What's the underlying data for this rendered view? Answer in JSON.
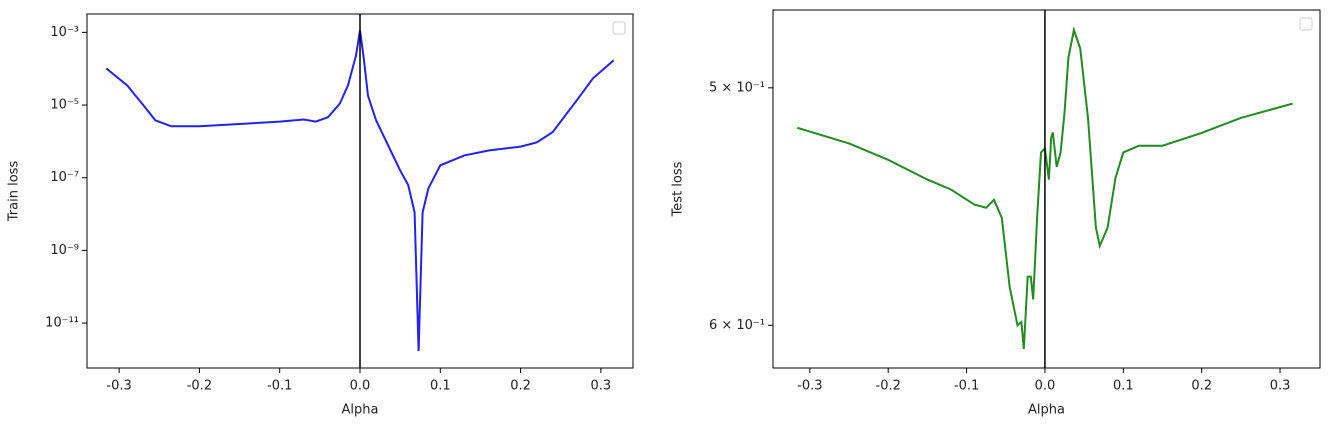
{
  "chart_data": [
    {
      "type": "line",
      "xlabel": "Alpha",
      "ylabel": "Train loss",
      "log_y": true,
      "legend": "upper right",
      "vline": 0,
      "vline_color": "#000000",
      "xlim": [
        -0.34,
        0.34
      ],
      "xticks": [
        -0.3,
        -0.2,
        -0.1,
        {
          "value": 0,
          "label": "0.0"
        },
        0.1,
        0.2,
        0.3
      ],
      "ylim": [
        0.0032,
        5.8e-13
      ],
      "yticks": [
        {
          "value": 0.001,
          "label": "10⁻³"
        },
        {
          "value": 1e-05,
          "label": "10⁻⁵"
        },
        {
          "value": 1e-07,
          "label": "10⁻⁷"
        },
        {
          "value": 1e-09,
          "label": "10⁻⁹"
        },
        {
          "value": 1e-11,
          "label": "10⁻¹¹"
        }
      ],
      "series": [
        {
          "color": "#2222ee",
          "x": [
            -0.316,
            -0.29,
            -0.27,
            -0.255,
            -0.235,
            -0.2,
            -0.15,
            -0.1,
            -0.07,
            -0.055,
            -0.04,
            -0.025,
            -0.015,
            -0.005,
            0.0,
            0.005,
            0.01,
            0.02,
            0.035,
            0.05,
            0.06,
            0.068,
            0.073,
            0.078,
            0.085,
            0.1,
            0.13,
            0.16,
            0.2,
            0.22,
            0.24,
            0.27,
            0.29,
            0.316
          ],
          "values": [
            0.000102,
            3.5e-05,
            1e-05,
            3.8e-06,
            2.6e-06,
            2.6e-06,
            3e-06,
            3.5e-06,
            4e-06,
            3.5e-06,
            4.6e-06,
            1.1e-05,
            3.5e-05,
            0.00023,
            0.00115,
            0.00017,
            1.8e-05,
            3.8e-06,
            7.8e-07,
            1.6e-07,
            6.3e-08,
            1.1e-08,
            1.7e-12,
            1.1e-08,
            5e-08,
            2.2e-07,
            4.1e-07,
            5.6e-07,
            7.2e-07,
            9.3e-07,
            1.8e-06,
            1.35e-05,
            5.4e-05,
            0.00017
          ]
        }
      ]
    },
    {
      "type": "line",
      "xlabel": "Alpha",
      "ylabel": "Test loss",
      "log_y": true,
      "legend": "upper right",
      "vline": 0,
      "vline_color": "#000000",
      "xlim": [
        -0.347,
        0.351
      ],
      "xticks": [
        -0.3,
        -0.2,
        -0.1,
        {
          "value": 0,
          "label": "0.0"
        },
        0.1,
        0.2,
        0.3
      ],
      "ylim": [
        0.471,
        0.62
      ],
      "yticks": [
        {
          "value": 0.6,
          "label": "6 × 10⁻¹"
        },
        {
          "value": 0.5,
          "label": "5 × 10⁻¹"
        }
      ],
      "series": [
        {
          "color": "#228b22",
          "x": [
            -0.316,
            -0.25,
            -0.2,
            -0.15,
            -0.12,
            -0.09,
            -0.075,
            -0.065,
            -0.055,
            -0.045,
            -0.035,
            -0.03,
            -0.027,
            -0.022,
            -0.018,
            -0.015,
            -0.01,
            -0.005,
            0.0,
            0.005,
            0.008,
            0.01,
            0.015,
            0.02,
            0.025,
            0.03,
            0.037,
            0.045,
            0.055,
            0.065,
            0.07,
            0.08,
            0.09,
            0.1,
            0.12,
            0.15,
            0.2,
            0.25,
            0.316
          ],
          "values": [
            0.5156,
            0.5218,
            0.5284,
            0.5365,
            0.5406,
            0.5469,
            0.5482,
            0.5449,
            0.5525,
            0.5827,
            0.6,
            0.5985,
            0.611,
            0.578,
            0.578,
            0.5882,
            0.5525,
            0.5254,
            0.5238,
            0.5365,
            0.5195,
            0.5174,
            0.5313,
            0.5254,
            0.5097,
            0.4886,
            0.4783,
            0.4851,
            0.5117,
            0.5567,
            0.5645,
            0.5567,
            0.5358,
            0.5254,
            0.5227,
            0.5227,
            0.5176,
            0.5117,
            0.5061
          ]
        }
      ]
    }
  ]
}
